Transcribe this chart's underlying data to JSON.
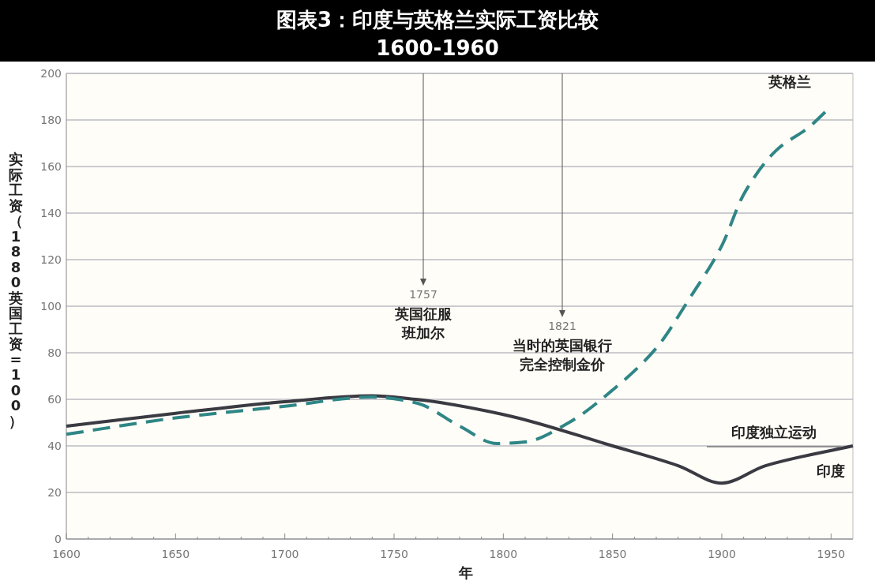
{
  "chart_data": {
    "type": "line",
    "title": "图表3：印度与英格兰实际工资比较",
    "subtitle": "1600-1960",
    "xlabel": "年",
    "ylabel": "实际工资（1880英国工资=100）",
    "xlim": [
      1600,
      1960
    ],
    "xticks": [
      1600,
      {
        "value": 1610,
        "label": null
      },
      {
        "value": 1620,
        "label": null
      },
      {
        "value": 1630,
        "label": null
      },
      {
        "value": 1640,
        "label": null
      },
      1650,
      {
        "value": 1660,
        "label": null
      },
      {
        "value": 1670,
        "label": null
      },
      {
        "value": 1680,
        "label": null
      },
      {
        "value": 1690,
        "label": null
      },
      1700,
      {
        "value": 1710,
        "label": null
      },
      {
        "value": 1720,
        "label": null
      },
      {
        "value": 1730,
        "label": null
      },
      {
        "value": 1740,
        "label": null
      },
      1750,
      {
        "value": 1760,
        "label": null
      },
      {
        "value": 1770,
        "label": null
      },
      {
        "value": 1780,
        "label": null
      },
      {
        "value": 1790,
        "label": null
      },
      1800,
      {
        "value": 1810,
        "label": null
      },
      {
        "value": 1820,
        "label": null
      },
      {
        "value": 1830,
        "label": null
      },
      {
        "value": 1840,
        "label": null
      },
      1850,
      {
        "value": 1860,
        "label": null
      },
      {
        "value": 1870,
        "label": null
      },
      {
        "value": 1880,
        "label": null
      },
      {
        "value": 1890,
        "label": null
      },
      1900,
      {
        "value": 1910,
        "label": null
      },
      {
        "value": 1920,
        "label": null
      },
      {
        "value": 1930,
        "label": null
      },
      {
        "value": 1940,
        "label": null
      },
      1950
    ],
    "ylim": [
      0,
      200
    ],
    "yticks": [
      0,
      20,
      40,
      60,
      80,
      100,
      120,
      140,
      160,
      180,
      200
    ],
    "grid": "y",
    "series": [
      {
        "name": "印度",
        "color": "#3a3a42",
        "line_style": "solid",
        "x": [
          1600,
          1650,
          1700,
          1740,
          1760,
          1800,
          1850,
          1880,
          1900,
          1920,
          1960
        ],
        "values": [
          48.5,
          54,
          59,
          61.5,
          60,
          53.5,
          40,
          31.5,
          24,
          31.5,
          40
        ]
      },
      {
        "name": "英格兰",
        "color": "#2f8686",
        "line_style": "dashed",
        "x": [
          1600,
          1650,
          1700,
          1740,
          1760,
          1780,
          1797,
          1810,
          1830,
          1850,
          1870,
          1885,
          1900,
          1910,
          1925,
          1940,
          1948
        ],
        "values": [
          45,
          52,
          57,
          61,
          58.5,
          48.5,
          41,
          41.7,
          50,
          64,
          82,
          103,
          126,
          148,
          167,
          177,
          184
        ]
      }
    ],
    "annotations": [
      "1757",
      "英国征服班加尔",
      "1821",
      "当时的英国银行完全控制金价",
      "印度独立运动"
    ]
  }
}
